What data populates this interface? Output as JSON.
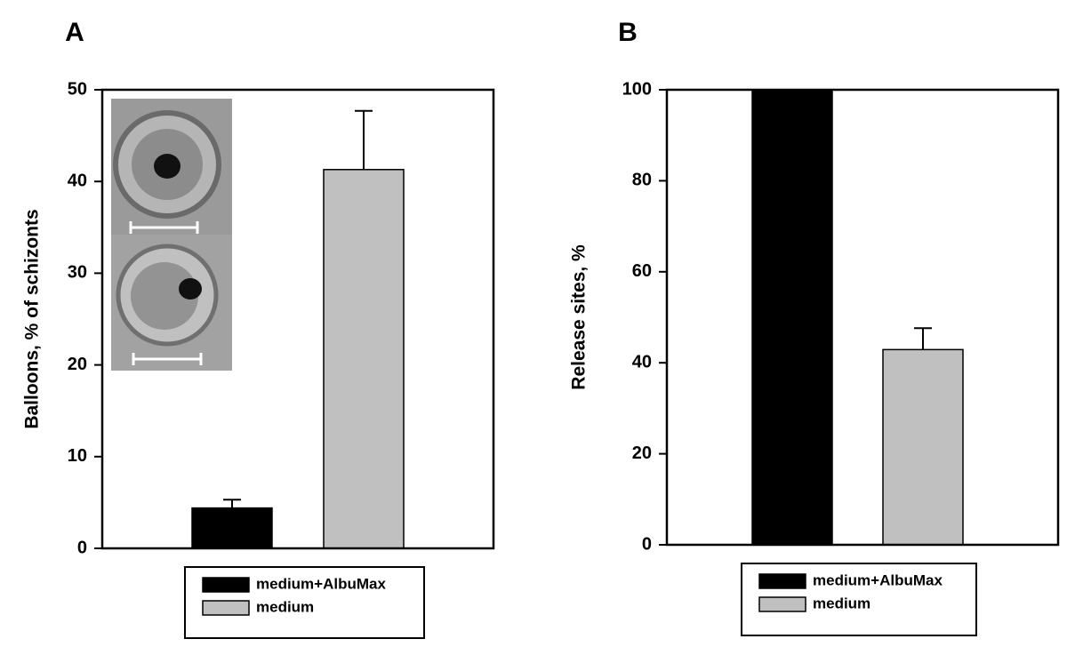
{
  "chart_data": [
    {
      "type": "bar",
      "panel": "A",
      "ylabel": "Balloons, % of schizonts",
      "ylim": [
        0,
        50
      ],
      "yticks": [
        0,
        10,
        20,
        30,
        40,
        50
      ],
      "series": [
        {
          "name": "medium+AlbuMax",
          "color": "#000000",
          "values": [
            4.4
          ],
          "errors": [
            0.9
          ]
        },
        {
          "name": "medium",
          "color": "#c0c0c0",
          "values": [
            41.3
          ],
          "errors": [
            6.4
          ]
        }
      ]
    },
    {
      "type": "bar",
      "panel": "B",
      "ylabel": "Release sites, %",
      "ylim": [
        0,
        100
      ],
      "yticks": [
        0,
        20,
        40,
        60,
        80,
        100
      ],
      "series": [
        {
          "name": "medium+AlbuMax",
          "color": "#000000",
          "values": [
            100
          ],
          "errors": [
            null
          ]
        },
        {
          "name": "medium",
          "color": "#c0c0c0",
          "values": [
            42.9
          ],
          "errors": [
            4.7
          ]
        }
      ]
    }
  ]
}
